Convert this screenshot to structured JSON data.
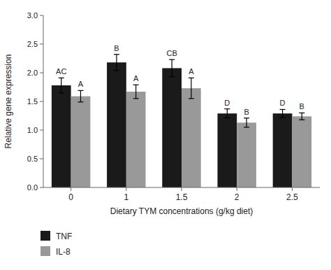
{
  "chart_data": {
    "type": "bar",
    "categories": [
      "0",
      "1",
      "1.5",
      "2",
      "2.5"
    ],
    "series": [
      {
        "name": "TNF",
        "color": "#1a1a1a",
        "values": [
          1.78,
          2.18,
          2.08,
          1.29,
          1.29
        ],
        "errors": [
          0.13,
          0.14,
          0.15,
          0.08,
          0.07
        ],
        "annotations": [
          "AC",
          "B",
          "CB",
          "D",
          "D"
        ]
      },
      {
        "name": "IL-8",
        "color": "#999999",
        "values": [
          1.59,
          1.67,
          1.73,
          1.13,
          1.24
        ],
        "errors": [
          0.1,
          0.12,
          0.18,
          0.08,
          0.06
        ],
        "annotations": [
          "A",
          "A",
          "A",
          "B",
          "B"
        ]
      }
    ],
    "xlabel": "Dietary TYM concentrations (g/kg diet)",
    "ylabel": "Relative gene expression",
    "ylim": [
      0,
      3.0
    ],
    "yticks": [
      {
        "value": 0,
        "label": "0.0"
      },
      0.5,
      {
        "value": 1.0,
        "label": "1.0"
      },
      1.5,
      {
        "value": 2.0,
        "label": "2.0"
      },
      2.5,
      {
        "value": 3.0,
        "label": "3.0"
      }
    ],
    "grid": false,
    "legend": "lower left"
  }
}
